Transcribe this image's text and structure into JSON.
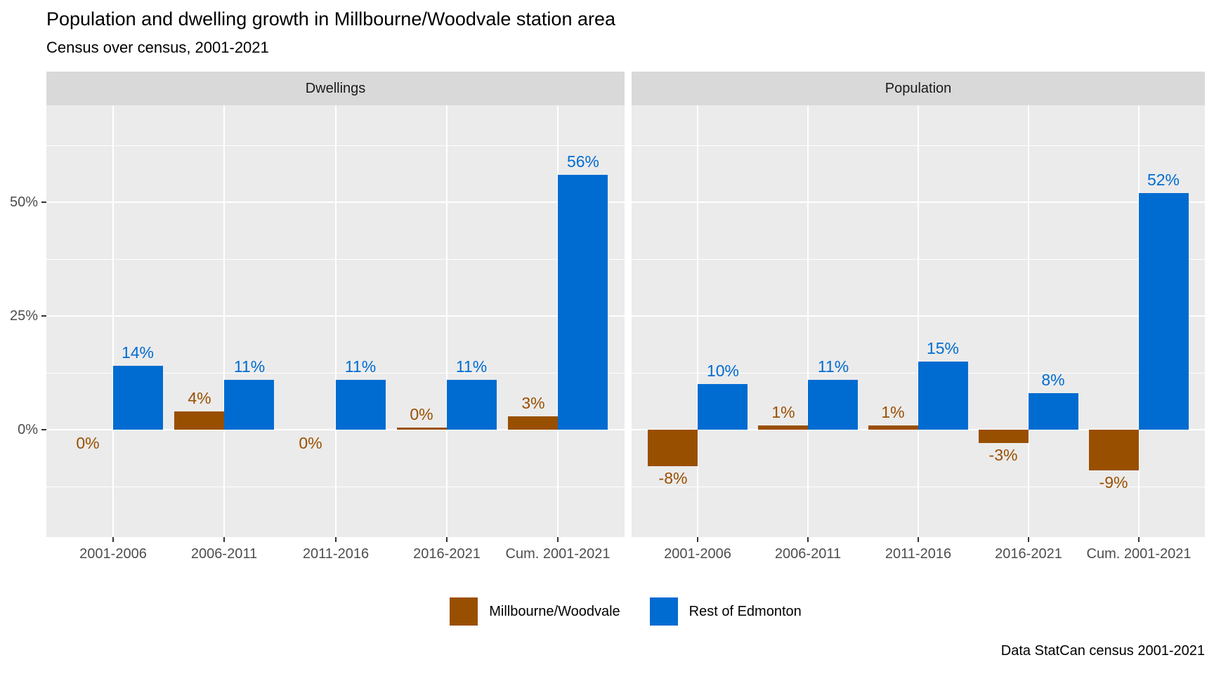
{
  "title": "Population and dwelling growth in Millbourne/Woodvale station area",
  "subtitle": "Census over census, 2001-2021",
  "caption": "Data StatCan census 2001-2021",
  "legend": {
    "items": [
      {
        "label": "Millbourne/Woodvale",
        "color": "#994F00"
      },
      {
        "label": "Rest of Edmonton",
        "color": "#006CD1"
      }
    ]
  },
  "colors": {
    "millbourne_brown": "#994F00",
    "edmonton_blue": "#006CD1",
    "panel_background": "#EBEBEB",
    "strip_background": "#D9D9D9",
    "gridline": "#FFFFFF",
    "axis_text": "#4D4D4D",
    "tick_mark": "#333333"
  },
  "chart_data": {
    "type": "bar",
    "layout": "two facets side by side, dodged bars, shared percent y-axis, legend bottom center",
    "grid": "on",
    "categories": [
      "2001-2006",
      "2006-2011",
      "2011-2016",
      "2016-2021",
      "Cum. 2001-2021"
    ],
    "y_ticks": [
      {
        "value": 0,
        "label": "0%"
      },
      {
        "value": 25,
        "label": "25%"
      },
      {
        "value": 50,
        "label": "50%"
      }
    ],
    "y_minor_gridlines": [
      -12.5,
      12.5,
      37.5,
      62.5
    ],
    "ylim": [
      -23.6,
      70.9
    ],
    "facets": [
      {
        "label": "Dwellings",
        "series": [
          {
            "name": "Millbourne/Woodvale",
            "values": [
              0,
              4,
              0,
              0.4,
              3
            ],
            "labels": [
              "0%",
              "4%",
              "0%",
              "0%",
              "3%"
            ]
          },
          {
            "name": "Rest of Edmonton",
            "values": [
              14,
              11,
              11,
              11,
              56
            ],
            "labels": [
              "14%",
              "11%",
              "11%",
              "11%",
              "56%"
            ]
          }
        ]
      },
      {
        "label": "Population",
        "series": [
          {
            "name": "Millbourne/Woodvale",
            "values": [
              -8,
              1,
              1,
              -3,
              -9
            ],
            "labels": [
              "-8%",
              "1%",
              "1%",
              "-3%",
              "-9%"
            ]
          },
          {
            "name": "Rest of Edmonton",
            "values": [
              10,
              11,
              15,
              8,
              52
            ],
            "labels": [
              "10%",
              "11%",
              "15%",
              "8%",
              "52%"
            ]
          }
        ]
      }
    ]
  }
}
